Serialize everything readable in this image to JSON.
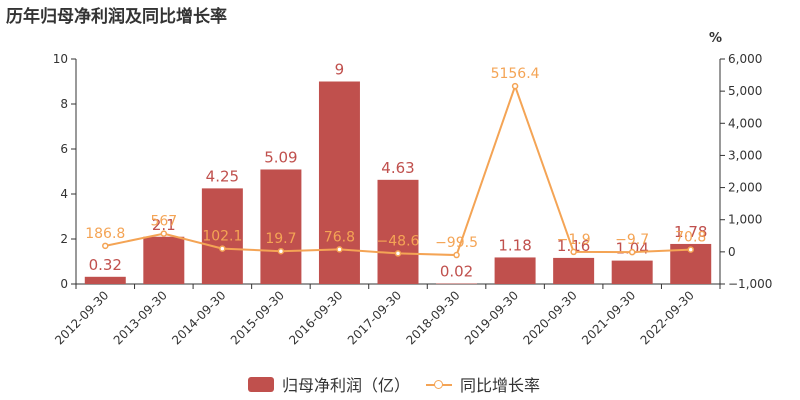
{
  "chart_data": {
    "type": "bar",
    "title": "历年归母净利润及同比增长率",
    "categories": [
      "2012-09-30",
      "2013-09-30",
      "2014-09-30",
      "2015-09-30",
      "2016-09-30",
      "2017-09-30",
      "2018-09-30",
      "2019-09-30",
      "2020-09-30",
      "2021-09-30",
      "2022-09-30"
    ],
    "series": [
      {
        "name": "归母净利润（亿）",
        "type": "bar",
        "axis": "left",
        "color": "#c0504d",
        "values": [
          0.32,
          2.1,
          4.25,
          5.09,
          9,
          4.63,
          0.02,
          1.18,
          1.16,
          1.04,
          1.78
        ],
        "labels": [
          "0.32",
          "2.1",
          "4.25",
          "5.09",
          "9",
          "4.63",
          "0.02",
          "1.18",
          "1.16",
          "1.04",
          "1.78"
        ]
      },
      {
        "name": "同比增长率",
        "type": "line",
        "axis": "right",
        "color": "#f4a455",
        "values": [
          186.8,
          567,
          102.1,
          19.7,
          76.8,
          -48.6,
          -99.5,
          5156.4,
          -1.9,
          -9.7,
          70.8
        ],
        "labels": [
          "186.8",
          "567",
          "102.1",
          "19.7",
          "76.8",
          "−48.6",
          "−99.5",
          "5156.4",
          "−1.9",
          "−9.7",
          "70.8"
        ]
      }
    ],
    "y_left": {
      "lim": [
        0,
        10
      ],
      "ticks": [
        "0",
        "2",
        "4",
        "6",
        "8",
        "10"
      ]
    },
    "y_right": {
      "lim": [
        -1000,
        6000
      ],
      "unit": "%",
      "ticks": [
        "−1,000",
        "0",
        "1,000",
        "2,000",
        "3,000",
        "4,000",
        "5,000",
        "6,000"
      ]
    },
    "grid": false,
    "legend_position": "bottom-center"
  }
}
